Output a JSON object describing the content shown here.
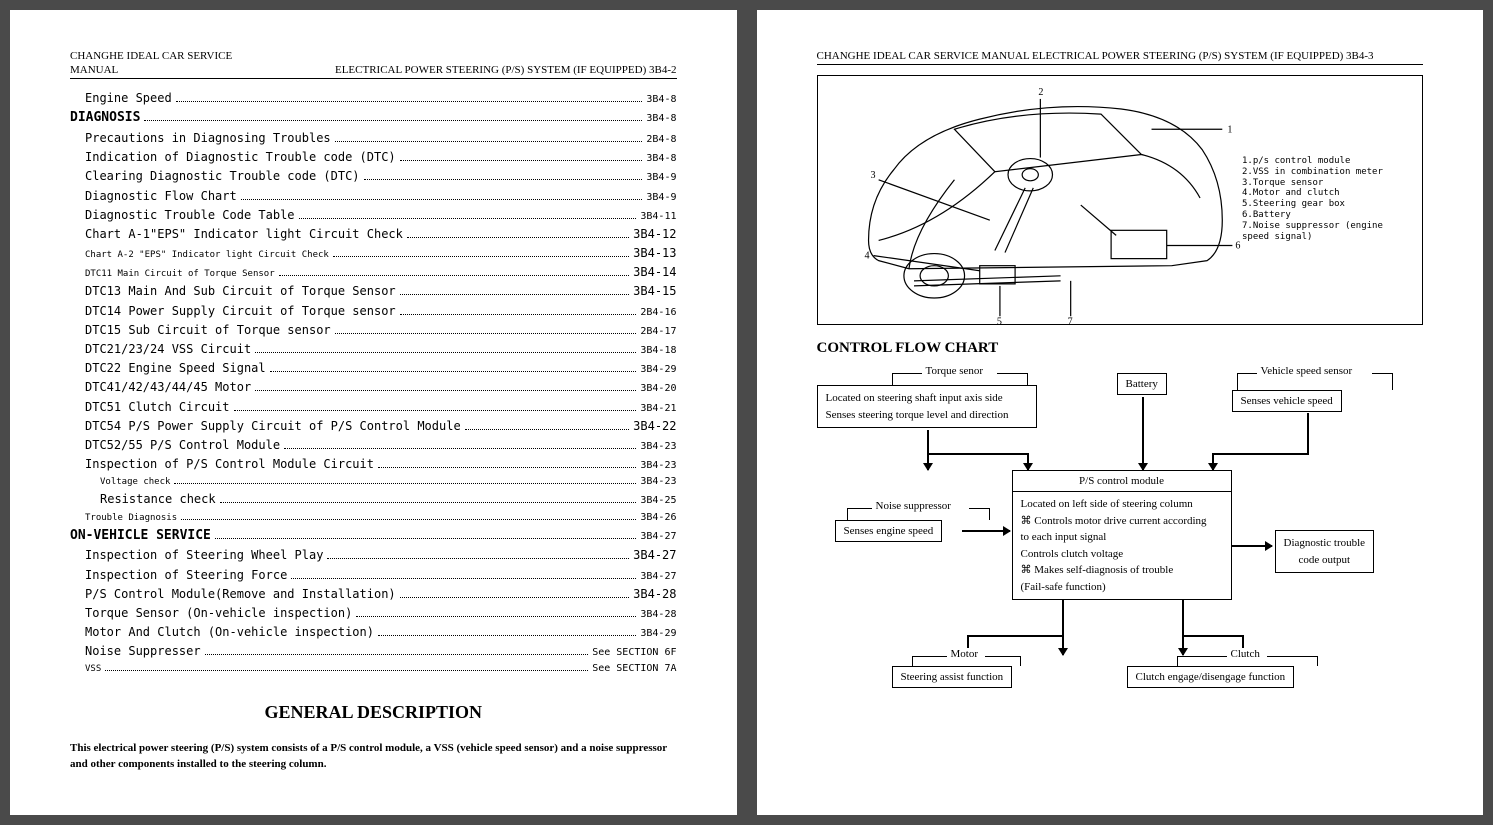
{
  "leftPage": {
    "headerLine1": "CHANGHE IDEAL CAR SERVICE",
    "headerLine2": "MANUAL",
    "headerRight": "ELECTRICAL POWER STEERING (P/S) SYSTEM (IF EQUIPPED) 3B4-2",
    "toc": [
      {
        "label": "Engine Speed",
        "page": "3B4-8",
        "indent": 1
      },
      {
        "label": "DIAGNOSIS",
        "page": "3B4-8",
        "indent": 0,
        "heading": true
      },
      {
        "label": "Precautions in Diagnosing Troubles",
        "page": "2B4-8",
        "indent": 1
      },
      {
        "label": "Indication of Diagnostic Trouble code (DTC)",
        "page": "3B4-8",
        "indent": 1
      },
      {
        "label": "Clearing Diagnostic Trouble code (DTC)",
        "page": "3B4-9",
        "indent": 1
      },
      {
        "label": "Diagnostic Flow Chart",
        "page": "3B4-9",
        "indent": 1
      },
      {
        "label": "Diagnostic Trouble Code Table",
        "page": "3B4-11",
        "indent": 1
      },
      {
        "label": "Chart A-1\"EPS\" Indicator light Circuit Check",
        "page": "3B4-12",
        "indent": 1,
        "big": true
      },
      {
        "label": "Chart A-2 \"EPS\" Indicator light Circuit Check",
        "page": "3B4-13",
        "indent": 1,
        "small": true,
        "big": true
      },
      {
        "label": "DTC11 Main Circuit of Torque Sensor",
        "page": "3B4-14",
        "indent": 1,
        "small": true,
        "big": true
      },
      {
        "label": "DTC13 Main And Sub Circuit of Torque Sensor",
        "page": "3B4-15",
        "indent": 1,
        "big": true
      },
      {
        "label": "DTC14 Power Supply Circuit of Torque sensor",
        "page": "2B4-16",
        "indent": 1
      },
      {
        "label": "DTC15 Sub Circuit of Torque sensor",
        "page": "2B4-17",
        "indent": 1
      },
      {
        "label": "DTC21/23/24 VSS Circuit",
        "page": "3B4-18",
        "indent": 1
      },
      {
        "label": "DTC22 Engine Speed Signal",
        "page": "3B4-29",
        "indent": 1
      },
      {
        "label": "DTC41/42/43/44/45 Motor",
        "page": "3B4-20",
        "indent": 1
      },
      {
        "label": "DTC51 Clutch Circuit",
        "page": "3B4-21",
        "indent": 1
      },
      {
        "label": "DTC54 P/S Power Supply Circuit of P/S Control Module",
        "page": "3B4-22",
        "indent": 1,
        "big": true
      },
      {
        "label": "DTC52/55 P/S Control Module",
        "page": "3B4-23",
        "indent": 1
      },
      {
        "label": "Inspection of P/S Control Module Circuit",
        "page": "3B4-23",
        "indent": 1
      },
      {
        "label": "Voltage check",
        "page": "3B4-23",
        "indent": 2,
        "small": true
      },
      {
        "label": "Resistance check",
        "page": "3B4-25",
        "indent": 2
      },
      {
        "label": "Trouble Diagnosis",
        "page": "3B4-26",
        "indent": 1,
        "small": true
      },
      {
        "label": "ON-VEHICLE SERVICE",
        "page": "3B4-27",
        "indent": 0,
        "heading": true
      },
      {
        "label": "Inspection of Steering Wheel Play",
        "page": "3B4-27",
        "indent": 1,
        "big": true
      },
      {
        "label": "Inspection of Steering Force",
        "page": "3B4-27",
        "indent": 1
      },
      {
        "label": "P/S Control Module(Remove and Installation)",
        "page": "3B4-28",
        "indent": 1,
        "big": true
      },
      {
        "label": "Torque Sensor (On-vehicle inspection)",
        "page": "3B4-28",
        "indent": 1
      },
      {
        "label": "Motor And Clutch (On-vehicle inspection)",
        "page": "3B4-29",
        "indent": 1
      },
      {
        "label": "Noise Suppresser",
        "page": "See SECTION 6F",
        "indent": 1
      },
      {
        "label": "VSS",
        "page": "See SECTION 7A",
        "indent": 1,
        "small": true
      }
    ],
    "generalTitle": "GENERAL DESCRIPTION",
    "generalText": "This electrical power steering (P/S) system consists of a P/S control module, a VSS (vehicle speed sensor) and a noise suppressor and other components installed to the steering column."
  },
  "rightPage": {
    "header": "CHANGHE IDEAL CAR SERVICE MANUAL ELECTRICAL POWER STEERING (P/S) SYSTEM (IF EQUIPPED) 3B4-3",
    "legend": [
      "1.p/s control module",
      "2.VSS in combination meter",
      "3.Torque sensor",
      "4.Motor and clutch",
      "5.Steering gear box",
      "6.Battery",
      "7.Noise suppressor (engine",
      "  speed signal)"
    ],
    "flowTitle": "CONTROL FLOW CHART",
    "flow": {
      "torqueLabel": "Torque senor",
      "torqueBox": "Located on steering shaft input axis side\nSenses steering torque level and direction",
      "batteryBox": "Battery",
      "vssLabel": "Vehicle speed sensor",
      "vssBox": "Senses vehicle speed",
      "psTitle": "P/S control module",
      "psBox": "Located on left side of steering column\n⌘    Controls motor drive current according\nto each input signal\n      Controls clutch voltage\n⌘     Makes self-diagnosis of trouble\n      (Fail-safe function)",
      "noiseLabel": "Noise suppressor",
      "noiseBox": "Senses engine speed",
      "dtcBox": "Diagnostic trouble\ncode output",
      "motorLabel": "Motor",
      "motorBox": "Steering assist function",
      "clutchLabel": "Clutch",
      "clutchBox": "Clutch engage/disengage function"
    }
  }
}
